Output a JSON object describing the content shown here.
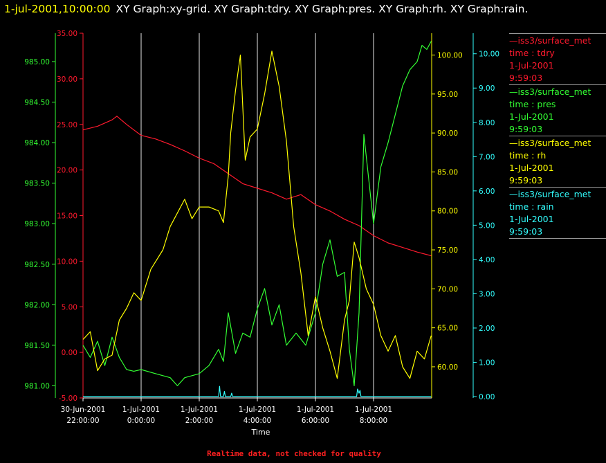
{
  "header": {
    "timestamp": "1-jul-2001,10:00:00",
    "titles": "XY Graph:xy-grid.  XY Graph:tdry.  XY Graph:pres.  XY Graph:rh.  XY Graph:rain."
  },
  "legend": [
    {
      "source": "—iss3/surface_met",
      "variable": "time : tdry",
      "date": "1-Jul-2001",
      "time": "9:59:03",
      "color": "#ff1a2e"
    },
    {
      "source": "—iss3/surface_met",
      "variable": "time : pres",
      "date": "1-Jul-2001",
      "time": "9:59:03",
      "color": "#33ff33"
    },
    {
      "source": "—iss3/surface_met",
      "variable": "time : rh",
      "date": "1-Jul-2001",
      "time": "9:59:03",
      "color": "#ffff00"
    },
    {
      "source": "—iss3/surface_met",
      "variable": "time : rain",
      "date": "1-Jul-2001",
      "time": "9:59:03",
      "color": "#33ffff"
    }
  ],
  "footer": "Realtime data, not checked for quality",
  "chart_data": {
    "type": "line",
    "title": "",
    "xlabel": "Time",
    "x_range": [
      "2001-06-30 22:00",
      "2001-07-01 10:00"
    ],
    "x_ticks": [
      {
        "date": "30-Jun-2001",
        "time": "22:00:00"
      },
      {
        "date": "1-Jul-2001",
        "time": "0:00:00"
      },
      {
        "date": "1-Jul-2001",
        "time": "2:00:00"
      },
      {
        "date": "1-Jul-2001",
        "time": "4:00:00"
      },
      {
        "date": "1-Jul-2001",
        "time": "6:00:00"
      },
      {
        "date": "1-Jul-2001",
        "time": "8:00:00"
      }
    ],
    "grid": "vertical",
    "axes": {
      "tdry": {
        "color": "#ff1a2e",
        "side": "left-inner",
        "range": [
          -5,
          35
        ],
        "ticks": [
          "-5.00",
          "0.00",
          "5.00",
          "10.00",
          "15.00",
          "20.00",
          "25.00",
          "30.00",
          "35.00"
        ]
      },
      "pres": {
        "color": "#33ff33",
        "side": "left-outer",
        "range": [
          980.85,
          985.35
        ],
        "ticks": [
          "981.00",
          "981.50",
          "982.00",
          "982.50",
          "983.00",
          "983.50",
          "984.00",
          "984.50",
          "985.00"
        ]
      },
      "rh": {
        "color": "#ffff00",
        "side": "right-inner",
        "range": [
          56,
          102.8
        ],
        "ticks": [
          "60.00",
          "65.00",
          "70.00",
          "75.00",
          "80.00",
          "85.00",
          "90.00",
          "95.00",
          "100.00"
        ]
      },
      "rain": {
        "color": "#33ffff",
        "side": "right-outer",
        "range": [
          -0.04,
          10.6
        ],
        "ticks": [
          "0.00",
          "1.00",
          "2.00",
          "3.00",
          "4.00",
          "5.00",
          "6.00",
          "7.00",
          "8.00",
          "9.00",
          "10.00"
        ]
      }
    },
    "series": [
      {
        "axis": "tdry",
        "color": "#ff1a2e",
        "x": [
          "2001-06-30 22:00",
          "2001-06-30 22:30",
          "2001-06-30 23:00",
          "2001-06-30 23:10",
          "2001-06-30 23:30",
          "2001-07-01 00:00",
          "2001-07-01 00:30",
          "2001-07-01 01:00",
          "2001-07-01 01:30",
          "2001-07-01 02:00",
          "2001-07-01 02:30",
          "2001-07-01 03:00",
          "2001-07-01 03:30",
          "2001-07-01 04:00",
          "2001-07-01 04:30",
          "2001-07-01 05:00",
          "2001-07-01 05:30",
          "2001-07-01 06:00",
          "2001-07-01 06:30",
          "2001-07-01 07:00",
          "2001-07-01 07:30",
          "2001-07-01 08:00",
          "2001-07-01 08:30",
          "2001-07-01 09:00",
          "2001-07-01 09:30",
          "2001-07-01 09:59"
        ],
        "values": [
          24.4,
          24.8,
          25.5,
          25.9,
          25.0,
          23.8,
          23.4,
          22.8,
          22.1,
          21.3,
          20.7,
          19.6,
          18.5,
          18.0,
          17.5,
          16.8,
          17.3,
          16.2,
          15.5,
          14.6,
          13.9,
          12.8,
          12.0,
          11.5,
          11.0,
          10.6
        ]
      },
      {
        "axis": "pres",
        "color": "#33ff33",
        "x": [
          "2001-06-30 22:00",
          "2001-06-30 22:15",
          "2001-06-30 22:30",
          "2001-06-30 22:45",
          "2001-06-30 23:00",
          "2001-06-30 23:15",
          "2001-06-30 23:30",
          "2001-06-30 23:45",
          "2001-07-01 00:00",
          "2001-07-01 00:30",
          "2001-07-01 01:00",
          "2001-07-01 01:15",
          "2001-07-01 01:30",
          "2001-07-01 02:00",
          "2001-07-01 02:20",
          "2001-07-01 02:40",
          "2001-07-01 02:50",
          "2001-07-01 03:00",
          "2001-07-01 03:15",
          "2001-07-01 03:30",
          "2001-07-01 03:45",
          "2001-07-01 04:00",
          "2001-07-01 04:15",
          "2001-07-01 04:30",
          "2001-07-01 04:45",
          "2001-07-01 05:00",
          "2001-07-01 05:20",
          "2001-07-01 05:40",
          "2001-07-01 06:00",
          "2001-07-01 06:15",
          "2001-07-01 06:30",
          "2001-07-01 06:45",
          "2001-07-01 07:00",
          "2001-07-01 07:10",
          "2001-07-01 07:20",
          "2001-07-01 07:30",
          "2001-07-01 07:40",
          "2001-07-01 08:00",
          "2001-07-01 08:15",
          "2001-07-01 08:30",
          "2001-07-01 08:45",
          "2001-07-01 09:00",
          "2001-07-01 09:15",
          "2001-07-01 09:30",
          "2001-07-01 09:40",
          "2001-07-01 09:50",
          "2001-07-01 09:59"
        ],
        "values": [
          981.5,
          981.35,
          981.55,
          981.25,
          981.6,
          981.35,
          981.2,
          981.18,
          981.2,
          981.15,
          981.1,
          981.0,
          981.1,
          981.15,
          981.25,
          981.45,
          981.3,
          981.9,
          981.4,
          981.65,
          981.6,
          981.95,
          982.2,
          981.75,
          982.0,
          981.5,
          981.65,
          981.5,
          981.9,
          982.5,
          982.8,
          982.35,
          982.4,
          981.45,
          981.0,
          981.9,
          984.1,
          983.0,
          983.7,
          984.0,
          984.35,
          984.7,
          984.9,
          985.0,
          985.2,
          985.15,
          985.25
        ]
      },
      {
        "axis": "rh",
        "color": "#ffff00",
        "x": [
          "2001-06-30 22:00",
          "2001-06-30 22:15",
          "2001-06-30 22:30",
          "2001-06-30 22:45",
          "2001-06-30 23:00",
          "2001-06-30 23:15",
          "2001-06-30 23:30",
          "2001-06-30 23:45",
          "2001-07-01 00:00",
          "2001-07-01 00:20",
          "2001-07-01 00:45",
          "2001-07-01 01:00",
          "2001-07-01 01:30",
          "2001-07-01 01:45",
          "2001-07-01 02:00",
          "2001-07-01 02:20",
          "2001-07-01 02:40",
          "2001-07-01 02:50",
          "2001-07-01 03:00",
          "2001-07-01 03:05",
          "2001-07-01 03:15",
          "2001-07-01 03:25",
          "2001-07-01 03:35",
          "2001-07-01 03:45",
          "2001-07-01 04:00",
          "2001-07-01 04:15",
          "2001-07-01 04:30",
          "2001-07-01 04:45",
          "2001-07-01 05:00",
          "2001-07-01 05:15",
          "2001-07-01 05:30",
          "2001-07-01 05:45",
          "2001-07-01 06:00",
          "2001-07-01 06:15",
          "2001-07-01 06:30",
          "2001-07-01 06:45",
          "2001-07-01 07:00",
          "2001-07-01 07:10",
          "2001-07-01 07:20",
          "2001-07-01 07:30",
          "2001-07-01 07:45",
          "2001-07-01 08:00",
          "2001-07-01 08:15",
          "2001-07-01 08:30",
          "2001-07-01 08:45",
          "2001-07-01 09:00",
          "2001-07-01 09:15",
          "2001-07-01 09:30",
          "2001-07-01 09:45",
          "2001-07-01 09:59"
        ],
        "values": [
          63.5,
          64.5,
          59.5,
          61.0,
          61.5,
          66.0,
          67.5,
          69.5,
          68.5,
          72.5,
          75.0,
          78.0,
          81.5,
          79.0,
          80.5,
          80.5,
          80.0,
          78.5,
          84.5,
          90.0,
          95.5,
          100.0,
          86.5,
          89.5,
          90.5,
          95.0,
          100.5,
          96.0,
          89.0,
          78.0,
          72.0,
          64.0,
          69.0,
          65.0,
          62.0,
          58.5,
          66.0,
          68.5,
          76.0,
          74.0,
          70.0,
          68.0,
          64.0,
          62.0,
          64.0,
          60.0,
          58.5,
          62.0,
          61.0,
          64.0
        ]
      },
      {
        "axis": "rain",
        "color": "#33ffff",
        "x": [
          "2001-06-30 22:00",
          "2001-07-01 02:40",
          "2001-07-01 02:42",
          "2001-07-01 02:44",
          "2001-07-01 02:50",
          "2001-07-01 02:52",
          "2001-07-01 02:54",
          "2001-07-01 03:05",
          "2001-07-01 03:07",
          "2001-07-01 03:09",
          "2001-07-01 07:25",
          "2001-07-01 07:27",
          "2001-07-01 07:30",
          "2001-07-01 07:32",
          "2001-07-01 07:34",
          "2001-07-01 09:59"
        ],
        "values": [
          0,
          0,
          0.3,
          0,
          0,
          0.15,
          0,
          0,
          0.1,
          0,
          0,
          0.22,
          0.1,
          0.18,
          0,
          0
        ]
      }
    ]
  }
}
